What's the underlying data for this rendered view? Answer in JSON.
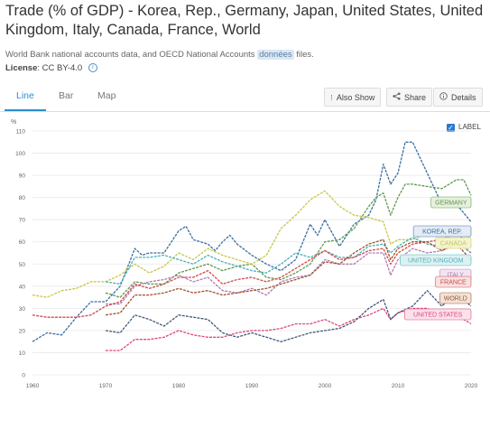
{
  "page": {
    "title": "Trade (% of GDP) - Korea, Rep., Germany, Japan, United States, United Kingdom, Italy, Canada, France, World",
    "subtitle_prefix": "World Bank national accounts data, and OECD National Accounts",
    "subtitle_highlight": "données",
    "subtitle_suffix": "files.",
    "license_label": "License",
    "license_value": ": CC BY-4.0",
    "info_glyph": "i"
  },
  "tabs": [
    {
      "label": "Line",
      "active": true
    },
    {
      "label": "Bar",
      "active": false
    },
    {
      "label": "Map",
      "active": false
    }
  ],
  "toolbar": {
    "also_show": "Also Show",
    "share": "Share",
    "details": "Details",
    "also_show_icon": "⁝",
    "share_icon": "share-icon",
    "details_icon": "info-icon"
  },
  "legend_toggle": {
    "label": "LABEL",
    "checked": true,
    "check_glyph": "✓"
  },
  "chart_data": {
    "type": "line",
    "ylabel": "%",
    "ylim": [
      0,
      110
    ],
    "yticks": [
      0,
      10,
      20,
      30,
      40,
      50,
      60,
      70,
      80,
      90,
      100,
      110
    ],
    "xlim": [
      1960,
      2020
    ],
    "xticks": [
      1960,
      1970,
      1980,
      1990,
      2000,
      2010,
      2020
    ],
    "grid": true,
    "series": [
      {
        "name": "KOREA, REP.",
        "color": "#3a6fa0",
        "x": [
          1960,
          1962,
          1964,
          1966,
          1968,
          1970,
          1972,
          1974,
          1975,
          1976,
          1978,
          1980,
          1981,
          1982,
          1984,
          1985,
          1986,
          1987,
          1988,
          1990,
          1991,
          1992,
          1994,
          1996,
          1998,
          1999,
          2000,
          2001,
          2002,
          2004,
          2006,
          2007,
          2008,
          2009,
          2010,
          2011,
          2012,
          2014,
          2016,
          2018,
          2020
        ],
        "y": [
          15,
          19,
          18,
          26,
          33,
          33,
          40,
          57,
          54,
          55,
          55,
          65,
          67,
          61,
          59,
          56,
          60,
          63,
          59,
          54,
          52,
          50,
          47,
          52,
          68,
          63,
          70,
          64,
          58,
          68,
          72,
          79,
          95,
          86,
          91,
          105,
          105,
          91,
          77,
          77,
          69
        ]
      },
      {
        "name": "GERMANY",
        "color": "#5a9a4a",
        "x": [
          1970,
          1972,
          1974,
          1976,
          1978,
          1980,
          1982,
          1984,
          1986,
          1988,
          1990,
          1992,
          1994,
          1996,
          1998,
          2000,
          2002,
          2004,
          2006,
          2007,
          2008,
          2009,
          2010,
          2011,
          2012,
          2014,
          2016,
          2018,
          2019,
          2020
        ],
        "y": [
          37,
          35,
          42,
          41,
          41,
          46,
          48,
          50,
          47,
          49,
          50,
          44,
          43,
          46,
          50,
          60,
          61,
          66,
          76,
          80,
          82,
          72,
          80,
          86,
          86,
          85,
          84,
          88,
          88,
          81
        ]
      },
      {
        "name": "CANADA",
        "color": "#c8c84a",
        "x": [
          1960,
          1962,
          1964,
          1966,
          1968,
          1970,
          1972,
          1974,
          1976,
          1978,
          1980,
          1982,
          1984,
          1986,
          1988,
          1990,
          1992,
          1994,
          1996,
          1998,
          2000,
          2002,
          2004,
          2006,
          2008,
          2009,
          2010,
          2012,
          2014,
          2016,
          2018,
          2020
        ],
        "y": [
          36,
          35,
          38,
          39,
          42,
          42,
          45,
          50,
          46,
          49,
          55,
          52,
          57,
          54,
          52,
          50,
          54,
          66,
          72,
          79,
          83,
          76,
          72,
          71,
          69,
          59,
          61,
          61,
          64,
          65,
          65,
          62
        ]
      },
      {
        "name": "UNITED KINGDOM",
        "color": "#4ab0b8",
        "x": [
          1970,
          1972,
          1974,
          1976,
          1978,
          1980,
          1982,
          1984,
          1986,
          1988,
          1990,
          1992,
          1994,
          1996,
          1998,
          2000,
          2002,
          2004,
          2006,
          2008,
          2009,
          2010,
          2012,
          2014,
          2016,
          2018,
          2020
        ],
        "y": [
          42,
          41,
          53,
          53,
          54,
          52,
          50,
          54,
          51,
          49,
          47,
          46,
          50,
          55,
          53,
          56,
          53,
          53,
          58,
          59,
          55,
          58,
          62,
          59,
          58,
          61,
          55
        ]
      },
      {
        "name": "ITALY",
        "color": "#b07ab0",
        "x": [
          1970,
          1972,
          1974,
          1976,
          1978,
          1980,
          1982,
          1984,
          1986,
          1988,
          1990,
          1992,
          1994,
          1996,
          1998,
          2000,
          2002,
          2004,
          2006,
          2008,
          2009,
          2010,
          2012,
          2014,
          2016,
          2018,
          2020
        ],
        "y": [
          32,
          32,
          40,
          42,
          43,
          45,
          42,
          44,
          38,
          37,
          39,
          36,
          42,
          44,
          45,
          52,
          50,
          50,
          55,
          55,
          45,
          52,
          57,
          55,
          56,
          60,
          55
        ]
      },
      {
        "name": "FRANCE",
        "color": "#d04a4a",
        "x": [
          1960,
          1962,
          1964,
          1966,
          1968,
          1970,
          1972,
          1974,
          1976,
          1978,
          1980,
          1982,
          1984,
          1986,
          1988,
          1990,
          1992,
          1994,
          1996,
          1998,
          2000,
          2002,
          2004,
          2006,
          2008,
          2009,
          2010,
          2012,
          2014,
          2016,
          2018,
          2020
        ],
        "y": [
          27,
          26,
          26,
          26,
          27,
          31,
          33,
          41,
          39,
          41,
          44,
          44,
          47,
          41,
          43,
          44,
          42,
          44,
          48,
          52,
          56,
          52,
          53,
          56,
          57,
          50,
          55,
          59,
          60,
          61,
          64,
          58
        ]
      },
      {
        "name": "WORLD",
        "color": "#a0522d",
        "x": [
          1970,
          1972,
          1974,
          1976,
          1978,
          1980,
          1982,
          1984,
          1986,
          1988,
          1990,
          1992,
          1994,
          1996,
          1998,
          2000,
          2002,
          2004,
          2006,
          2008,
          2009,
          2010,
          2012,
          2014,
          2016,
          2018,
          2020
        ],
        "y": [
          27,
          28,
          36,
          36,
          37,
          39,
          37,
          38,
          36,
          37,
          38,
          39,
          41,
          43,
          45,
          51,
          50,
          55,
          59,
          61,
          52,
          57,
          60,
          60,
          56,
          59,
          52
        ]
      },
      {
        "name": "UNITED STATES",
        "color": "#e0457a",
        "x": [
          1970,
          1972,
          1974,
          1976,
          1978,
          1980,
          1982,
          1984,
          1986,
          1988,
          1990,
          1992,
          1994,
          1996,
          1998,
          2000,
          2002,
          2004,
          2006,
          2008,
          2009,
          2010,
          2012,
          2014,
          2016,
          2018,
          2020
        ],
        "y": [
          11,
          11,
          16,
          16,
          17,
          20,
          18,
          17,
          17,
          19,
          20,
          20,
          21,
          23,
          23,
          25,
          22,
          25,
          27,
          30,
          25,
          28,
          30,
          30,
          27,
          27,
          23
        ]
      },
      {
        "name": "JAPAN",
        "color": "#405878",
        "x": [
          1970,
          1972,
          1974,
          1976,
          1978,
          1980,
          1982,
          1984,
          1986,
          1988,
          1990,
          1992,
          1994,
          1996,
          1998,
          2000,
          2002,
          2004,
          2006,
          2008,
          2009,
          2010,
          2012,
          2014,
          2016,
          2018,
          2020
        ],
        "y": [
          20,
          19,
          27,
          25,
          22,
          27,
          26,
          25,
          19,
          17,
          19,
          17,
          15,
          17,
          19,
          20,
          21,
          24,
          30,
          34,
          25,
          28,
          31,
          38,
          31,
          37,
          31
        ]
      }
    ],
    "labels": [
      {
        "text": "GERMANY",
        "series": "GERMANY",
        "bg": "#e6f0dc",
        "border": "#5a9a4a",
        "fg": "#5a9a4a"
      },
      {
        "text": "KOREA, REP.",
        "series": "KOREA, REP.",
        "bg": "#e4ecf6",
        "border": "#3a6fa0",
        "fg": "#3a6fa0"
      },
      {
        "text": "CANADA",
        "series": "CANADA",
        "bg": "#f5f5d2",
        "border": "#c8c84a",
        "fg": "#c8c84a"
      },
      {
        "text": "UNITED KINGDOM",
        "series": "UNITED KINGDOM",
        "bg": "#ddf1f2",
        "border": "#4ab0b8",
        "fg": "#4ab0b8"
      },
      {
        "text": "ITALY",
        "series": "ITALY",
        "bg": "#f3e4f3",
        "border": "#b07ab0",
        "fg": "#b07ab0"
      },
      {
        "text": "FRANCE",
        "series": "FRANCE",
        "bg": "#f8e0e0",
        "border": "#d04a4a",
        "fg": "#d04a4a"
      },
      {
        "text": "WORLD",
        "series": "WORLD",
        "bg": "#f2e2d6",
        "border": "#a0522d",
        "fg": "#a0522d"
      },
      {
        "text": "UNITED STATES",
        "series": "UNITED STATES",
        "bg": "#fbe0ea",
        "border": "#e0457a",
        "fg": "#e0457a"
      }
    ]
  }
}
